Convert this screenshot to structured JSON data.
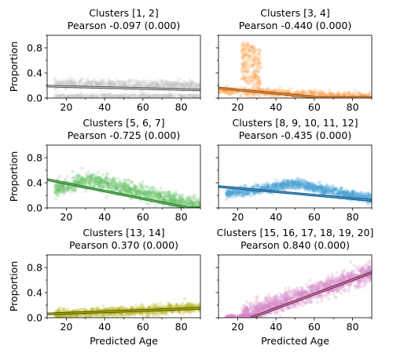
{
  "chart_data": [
    {
      "type": "scatter",
      "title": "Clusters [1, 2]",
      "subtitle": "Pearson -0.097 (0.000)",
      "xlabel": "",
      "ylabel": "Proportion",
      "xlim": [
        10,
        90
      ],
      "ylim": [
        0,
        1
      ],
      "xticks": [
        20,
        40,
        60,
        80
      ],
      "yticks": [
        0.0,
        0.4,
        0.8
      ],
      "color": "#c2c2c2",
      "line_color": "#5a5a5a",
      "series": [
        {
          "pattern": "band",
          "x_range": [
            14,
            90
          ],
          "y_center_start": 0.22,
          "y_center_end": 0.2,
          "y_spread": 0.06,
          "count": 700
        },
        {
          "pattern": "band",
          "x_range": [
            14,
            90
          ],
          "y_center_start": 0.03,
          "y_center_end": 0.03,
          "y_spread": 0.025,
          "count": 400
        }
      ],
      "fit": {
        "x": [
          10,
          90
        ],
        "y": [
          0.19,
          0.13
        ]
      }
    },
    {
      "type": "scatter",
      "title": "Clusters [3, 4]",
      "subtitle": "Pearson -0.440 (0.000)",
      "xlabel": "",
      "ylabel": "",
      "xlim": [
        10,
        90
      ],
      "ylim": [
        0,
        1
      ],
      "xticks": [
        20,
        40,
        60,
        80
      ],
      "yticks": [
        0.0,
        0.4,
        0.8
      ],
      "color": "#ff9f4a",
      "line_color": "#8a4a10",
      "series": [
        {
          "pattern": "spike",
          "x_range": [
            22,
            32
          ],
          "y_center_start": 0.6,
          "y_center_end": 0.45,
          "y_spread": 0.32,
          "count": 220
        },
        {
          "pattern": "band",
          "x_range": [
            10,
            90
          ],
          "y_center_start": 0.12,
          "y_center_end": 0.015,
          "y_spread": 0.05,
          "count": 600
        }
      ],
      "fit": {
        "x": [
          10,
          62,
          90
        ],
        "y": [
          0.16,
          0.01,
          0.01
        ]
      }
    },
    {
      "type": "scatter",
      "title": "Clusters [5, 6, 7]",
      "subtitle": "Pearson -0.725 (0.000)",
      "xlabel": "",
      "ylabel": "Proportion",
      "xlim": [
        10,
        90
      ],
      "ylim": [
        0,
        1
      ],
      "xticks": [
        20,
        40,
        60,
        80
      ],
      "yticks": [
        0.0,
        0.4,
        0.8
      ],
      "color": "#6fc36f",
      "line_color": "#1f6f1f",
      "series": [
        {
          "pattern": "hump",
          "x_range": [
            14,
            90
          ],
          "peak_x": 32,
          "peak_y": 0.45,
          "end_y": 0.02,
          "start_y": 0.3,
          "y_spread": 0.1,
          "count": 1100
        }
      ],
      "fit": {
        "x": [
          10,
          84,
          90
        ],
        "y": [
          0.45,
          0.0,
          0.0
        ]
      }
    },
    {
      "type": "scatter",
      "title": "Clusters [8, 9, 10, 11, 12]",
      "subtitle": "Pearson -0.435 (0.000)",
      "xlabel": "",
      "ylabel": "",
      "xlim": [
        10,
        90
      ],
      "ylim": [
        0,
        1
      ],
      "xticks": [
        20,
        40,
        60,
        80
      ],
      "yticks": [
        0.0,
        0.4,
        0.8
      ],
      "color": "#4ea3d6",
      "line_color": "#0f4f7f",
      "series": [
        {
          "pattern": "hump",
          "x_range": [
            14,
            90
          ],
          "peak_x": 50,
          "peak_y": 0.38,
          "end_y": 0.15,
          "start_y": 0.22,
          "y_spread": 0.06,
          "count": 1100
        }
      ],
      "fit": {
        "x": [
          10,
          90
        ],
        "y": [
          0.34,
          0.12
        ]
      }
    },
    {
      "type": "scatter",
      "title": "Clusters [13, 14]",
      "subtitle": "Pearson 0.370 (0.000)",
      "xlabel": "Predicted Age",
      "ylabel": "Proportion",
      "xlim": [
        10,
        90
      ],
      "ylim": [
        0,
        1
      ],
      "xticks": [
        20,
        40,
        60,
        80
      ],
      "yticks": [
        0.0,
        0.4,
        0.8
      ],
      "color": "#b5b81e",
      "line_color": "#4d4f00",
      "series": [
        {
          "pattern": "band",
          "x_range": [
            14,
            90
          ],
          "y_center_start": 0.05,
          "y_center_end": 0.16,
          "y_spread": 0.06,
          "count": 1000
        }
      ],
      "fit": {
        "x": [
          10,
          90
        ],
        "y": [
          0.06,
          0.15
        ]
      }
    },
    {
      "type": "scatter",
      "title": "Clusters [15, 16, 17, 18, 19, 20]",
      "subtitle": "Pearson 0.840 (0.000)",
      "xlabel": "Predicted Age",
      "ylabel": "",
      "xlim": [
        10,
        90
      ],
      "ylim": [
        0,
        1
      ],
      "xticks": [
        20,
        40,
        60,
        80
      ],
      "yticks": [
        0.0,
        0.4,
        0.8
      ],
      "color": "#d58ac9",
      "line_color": "#6b1f3a",
      "series": [
        {
          "pattern": "band",
          "x_range": [
            22,
            90
          ],
          "y_center_start": 0.04,
          "y_center_end": 0.72,
          "y_spread": 0.12,
          "count": 1300
        },
        {
          "pattern": "band",
          "x_range": [
            14,
            30
          ],
          "y_center_start": 0.01,
          "y_center_end": 0.04,
          "y_spread": 0.02,
          "count": 150
        }
      ],
      "fit": {
        "x": [
          27,
          90
        ],
        "y": [
          0.0,
          0.72
        ]
      }
    }
  ]
}
